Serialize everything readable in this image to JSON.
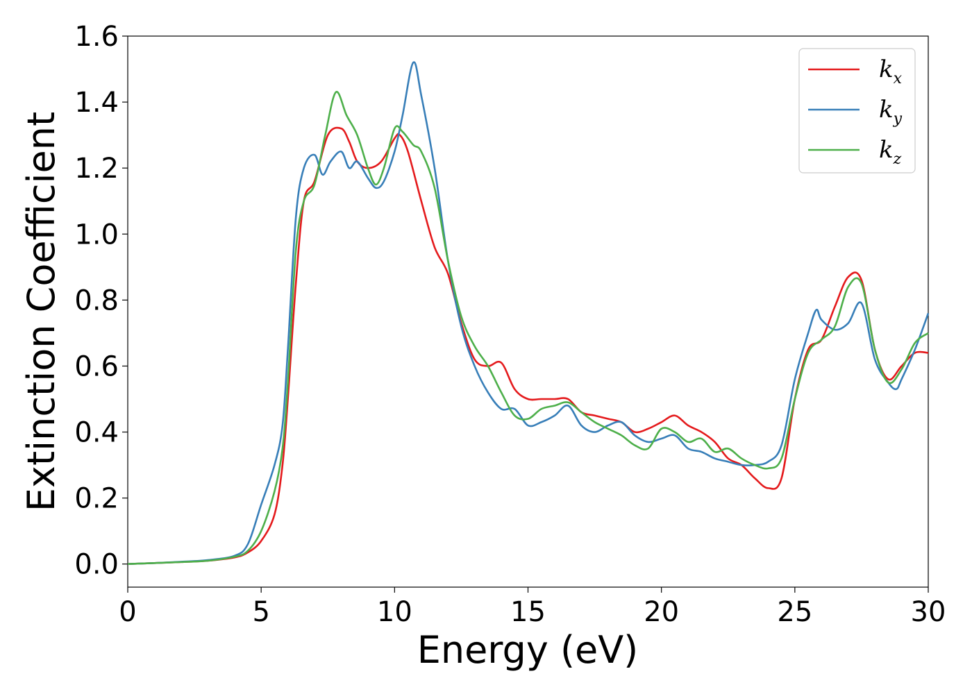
{
  "chart_data": {
    "type": "line",
    "xlabel": "Energy (eV)",
    "ylabel": "Extinction Coefficient",
    "xlim": [
      0,
      30
    ],
    "ylim": [
      -0.07,
      1.6
    ],
    "xticks": [
      0,
      5,
      10,
      15,
      20,
      25,
      30
    ],
    "yticks": [
      0.0,
      0.2,
      0.4,
      0.6,
      0.8,
      1.0,
      1.2,
      1.4,
      1.6
    ],
    "grid": false,
    "legend_position": "top-right",
    "series": [
      {
        "name": "k_x",
        "label_base": "k",
        "label_sub": "x",
        "color": "#e41a1c",
        "x": [
          0,
          1,
          2,
          3,
          4,
          4.5,
          5,
          5.5,
          5.8,
          6,
          6.3,
          6.6,
          7,
          7.5,
          8,
          8.3,
          8.6,
          9,
          9.5,
          10,
          10.2,
          10.5,
          11,
          11.5,
          12,
          12.5,
          13,
          13.5,
          14,
          14.5,
          15,
          15.5,
          16,
          16.5,
          17,
          17.5,
          18,
          18.5,
          19,
          19.5,
          20,
          20.5,
          21,
          21.5,
          22,
          22.5,
          23,
          23.5,
          24,
          24.5,
          25,
          25.5,
          26,
          26.5,
          27,
          27.5,
          28,
          28.5,
          29,
          29.5,
          30
        ],
        "y": [
          0.0,
          0.003,
          0.006,
          0.01,
          0.02,
          0.035,
          0.07,
          0.15,
          0.3,
          0.5,
          0.85,
          1.1,
          1.16,
          1.3,
          1.32,
          1.28,
          1.22,
          1.2,
          1.22,
          1.29,
          1.3,
          1.25,
          1.1,
          0.96,
          0.88,
          0.73,
          0.62,
          0.6,
          0.61,
          0.53,
          0.5,
          0.5,
          0.5,
          0.5,
          0.46,
          0.45,
          0.44,
          0.43,
          0.4,
          0.41,
          0.43,
          0.45,
          0.42,
          0.4,
          0.37,
          0.32,
          0.3,
          0.26,
          0.23,
          0.26,
          0.5,
          0.65,
          0.68,
          0.78,
          0.87,
          0.86,
          0.65,
          0.56,
          0.6,
          0.64,
          0.64
        ]
      },
      {
        "name": "k_y",
        "label_base": "k",
        "label_sub": "y",
        "color": "#377eb8",
        "x": [
          0,
          1,
          2,
          3,
          4,
          4.5,
          5,
          5.5,
          5.8,
          6,
          6.3,
          6.6,
          7,
          7.3,
          7.6,
          8,
          8.3,
          8.6,
          9,
          9.3,
          9.6,
          10,
          10.3,
          10.7,
          11,
          11.5,
          12,
          12.5,
          13,
          13.5,
          14,
          14.5,
          15,
          15.5,
          16,
          16.5,
          17,
          17.5,
          18,
          18.5,
          19,
          19.5,
          20,
          20.5,
          21,
          21.5,
          22,
          22.5,
          23,
          23.5,
          24,
          24.5,
          25,
          25.5,
          25.8,
          26,
          26.5,
          27,
          27.5,
          28,
          28.5,
          28.8,
          29,
          29.5,
          30
        ],
        "y": [
          0.0,
          0.003,
          0.007,
          0.012,
          0.025,
          0.06,
          0.18,
          0.3,
          0.42,
          0.65,
          1.05,
          1.2,
          1.24,
          1.18,
          1.22,
          1.25,
          1.2,
          1.22,
          1.17,
          1.14,
          1.16,
          1.25,
          1.36,
          1.52,
          1.42,
          1.2,
          0.92,
          0.72,
          0.6,
          0.52,
          0.47,
          0.47,
          0.42,
          0.43,
          0.45,
          0.48,
          0.42,
          0.4,
          0.42,
          0.43,
          0.39,
          0.37,
          0.38,
          0.39,
          0.35,
          0.34,
          0.32,
          0.31,
          0.3,
          0.3,
          0.31,
          0.36,
          0.56,
          0.7,
          0.77,
          0.74,
          0.71,
          0.73,
          0.79,
          0.62,
          0.55,
          0.53,
          0.56,
          0.65,
          0.76
        ]
      },
      {
        "name": "k_z",
        "label_base": "k",
        "label_sub": "z",
        "color": "#4daf4a",
        "x": [
          0,
          1,
          2,
          3,
          4,
          4.5,
          5,
          5.5,
          5.8,
          6,
          6.3,
          6.6,
          7,
          7.4,
          7.8,
          8.2,
          8.6,
          9,
          9.3,
          9.6,
          10,
          10.3,
          10.7,
          11,
          11.5,
          12,
          12.5,
          13,
          13.5,
          14,
          14.5,
          15,
          15.5,
          16,
          16.5,
          17,
          17.5,
          18,
          18.5,
          19,
          19.5,
          20,
          20.5,
          21,
          21.5,
          22,
          22.5,
          23,
          23.5,
          24,
          24.5,
          25,
          25.5,
          26,
          26.5,
          27,
          27.5,
          28,
          28.5,
          29,
          29.5,
          30
        ],
        "y": [
          0.0,
          0.003,
          0.006,
          0.01,
          0.022,
          0.04,
          0.1,
          0.22,
          0.35,
          0.55,
          0.95,
          1.1,
          1.15,
          1.3,
          1.43,
          1.36,
          1.3,
          1.2,
          1.15,
          1.2,
          1.32,
          1.31,
          1.27,
          1.25,
          1.14,
          0.92,
          0.75,
          0.66,
          0.6,
          0.52,
          0.45,
          0.44,
          0.47,
          0.48,
          0.49,
          0.46,
          0.43,
          0.41,
          0.39,
          0.36,
          0.35,
          0.41,
          0.4,
          0.37,
          0.38,
          0.34,
          0.35,
          0.32,
          0.3,
          0.29,
          0.32,
          0.5,
          0.64,
          0.68,
          0.72,
          0.84,
          0.85,
          0.65,
          0.55,
          0.59,
          0.67,
          0.7
        ]
      }
    ]
  }
}
